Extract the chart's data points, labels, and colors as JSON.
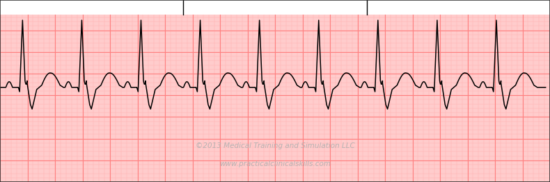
{
  "bg_color": "#ffcccc",
  "grid_minor_color": "#ffb3b3",
  "grid_major_color": "#ff8080",
  "line_color": "#000000",
  "watermark_color": "#b0b0b0",
  "watermark_line1": "©2013 Medical Training and Simulation LLC",
  "watermark_line2": "www.practicalclinicalskills.com",
  "fig_width": 7.9,
  "fig_height": 2.62,
  "dpi": 100,
  "xlim": [
    0,
    10.0
  ],
  "ylim": [
    -2.2,
    2.0
  ],
  "baseline": 0.0,
  "header_color": "#ffffff",
  "num_beats": 9
}
